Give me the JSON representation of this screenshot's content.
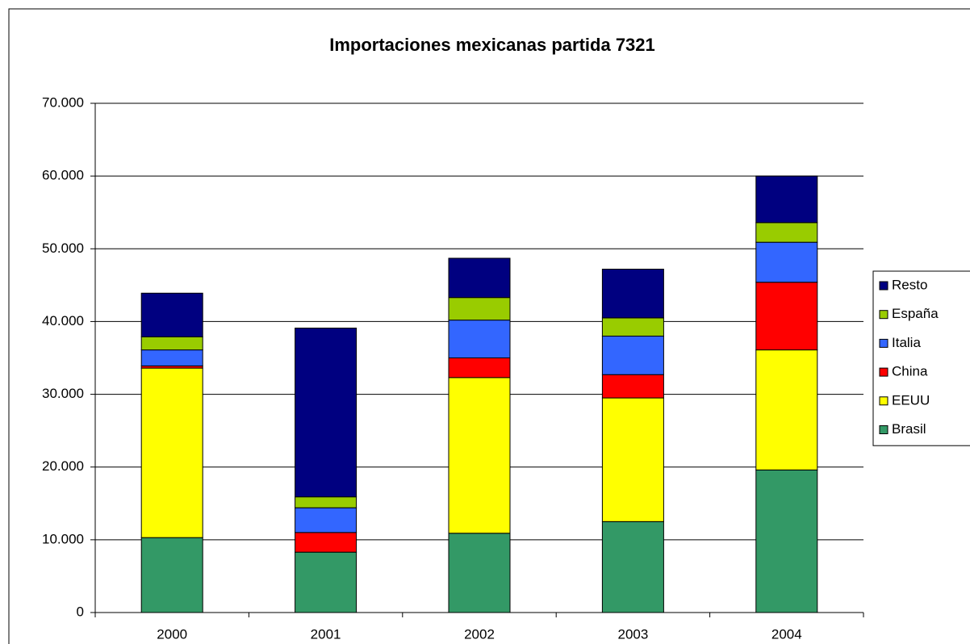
{
  "chart_data": {
    "type": "stacked_bar",
    "title": "Importaciones mexicanas partida 7321",
    "categories": [
      "2000",
      "2001",
      "2002",
      "2003",
      "2004"
    ],
    "series": [
      {
        "name": "Brasil",
        "color": "#339966",
        "values": [
          10300,
          8300,
          10900,
          12500,
          19600
        ]
      },
      {
        "name": "EEUU",
        "color": "#ffff00",
        "values": [
          23300,
          0,
          21400,
          17000,
          16500
        ]
      },
      {
        "name": "China",
        "color": "#ff0000",
        "values": [
          300,
          2700,
          2700,
          3200,
          9300
        ]
      },
      {
        "name": "Italia",
        "color": "#3366ff",
        "values": [
          2200,
          3400,
          5200,
          5300,
          5500
        ]
      },
      {
        "name": "España",
        "color": "#99cc00",
        "values": [
          1800,
          1500,
          3100,
          2500,
          2700
        ]
      },
      {
        "name": "Resto",
        "color": "#000080",
        "values": [
          6000,
          23200,
          5400,
          6700,
          6400
        ]
      }
    ],
    "ylim": [
      0,
      70000
    ],
    "yticks": [
      0,
      {
        "value": 10000,
        "label": "10.000"
      },
      {
        "value": 20000,
        "label": "20.000"
      },
      {
        "value": 30000,
        "label": "30.000"
      },
      {
        "value": 40000,
        "label": "40.000"
      },
      {
        "value": 50000,
        "label": "50.000"
      },
      {
        "value": 60000,
        "label": "60.000"
      },
      {
        "value": 70000,
        "label": "70.000"
      }
    ],
    "grid": true,
    "legend": "right"
  }
}
